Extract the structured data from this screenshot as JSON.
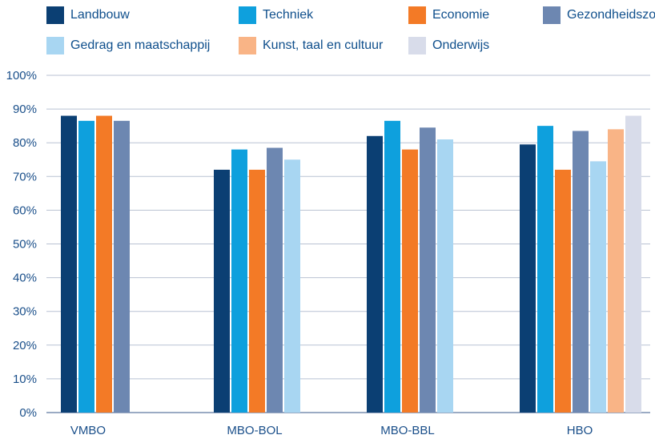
{
  "chart_data": {
    "type": "bar",
    "categories": [
      "VMBO",
      "MBO-BOL",
      "MBO-BBL",
      "HBO"
    ],
    "series": [
      {
        "name": "Landbouw",
        "color": "#0b3f73",
        "values": [
          88,
          72,
          82,
          79.5
        ]
      },
      {
        "name": "Techniek",
        "color": "#0ea0dd",
        "values": [
          86.5,
          78,
          86.5,
          85
        ]
      },
      {
        "name": "Economie",
        "color": "#f37a26",
        "values": [
          88,
          72,
          78,
          72
        ]
      },
      {
        "name": "Gezondheidszorg",
        "color": "#6d87b1",
        "values": [
          86.5,
          78.5,
          84.5,
          83.5
        ]
      },
      {
        "name": "Gedrag en maatschappij",
        "color": "#a8d6f2",
        "values": [
          null,
          75,
          81,
          null
        ]
      },
      {
        "name": "Kunst, taal en cultuur",
        "color": "#f9b486",
        "values": [
          null,
          null,
          null,
          84
        ]
      },
      {
        "name": "Onderwijs",
        "color": "#d8dcea",
        "values": [
          null,
          null,
          null,
          88
        ]
      }
    ],
    "extra": {
      "Gedrag en maatschappij": {
        "HBO": 74.5
      }
    },
    "y_ticks": [
      "0%",
      "10%",
      "20%",
      "30%",
      "40%",
      "50%",
      "60%",
      "70%",
      "80%",
      "90%",
      "100%"
    ],
    "ylim": [
      0,
      100
    ],
    "grid": true,
    "legend_position": "top"
  }
}
